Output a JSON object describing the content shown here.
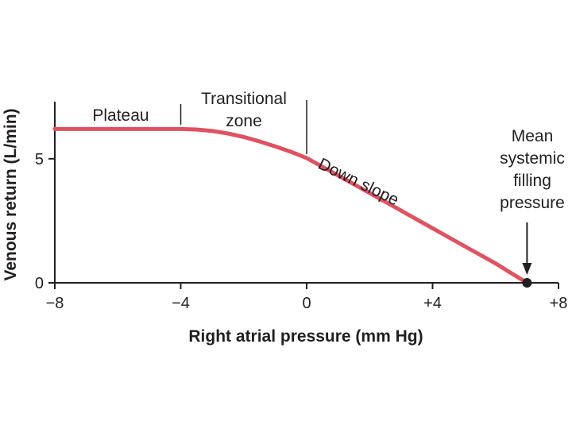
{
  "chart_data": {
    "type": "line",
    "title": "",
    "xlabel": "Right atrial pressure (mm Hg)",
    "ylabel": "Venous return (L/min)",
    "xlim": [
      -8,
      8
    ],
    "ylim": [
      0,
      7.3
    ],
    "xticks": [
      -8,
      -4,
      0,
      4,
      8
    ],
    "xtick_labels": [
      "−8",
      "−4",
      "0",
      "+4",
      "+8"
    ],
    "yticks": [
      0,
      5
    ],
    "ytick_labels": [
      "0",
      "5"
    ],
    "grid": false,
    "series": [
      {
        "color": "#e05260",
        "x": [
          -8,
          -6,
          -4,
          -3.5,
          -3,
          -2.5,
          -2,
          -1.5,
          -1,
          -0.5,
          0,
          1,
          2,
          3,
          4,
          5,
          6,
          7
        ],
        "y": [
          6.2,
          6.2,
          6.2,
          6.18,
          6.12,
          6.02,
          5.88,
          5.7,
          5.5,
          5.28,
          5.03,
          4.33,
          3.62,
          2.91,
          2.2,
          1.49,
          0.78,
          0
        ]
      }
    ],
    "point": {
      "x": 7,
      "y": 0,
      "color": "#231f20"
    },
    "divider_lines": [
      -4,
      0
    ],
    "annotations": {
      "plateau": "Plateau",
      "transitional": [
        "Transitional",
        "zone"
      ],
      "down_slope": "Down slope",
      "msfp": [
        "Mean",
        "systemic",
        "filling",
        "pressure"
      ]
    }
  }
}
